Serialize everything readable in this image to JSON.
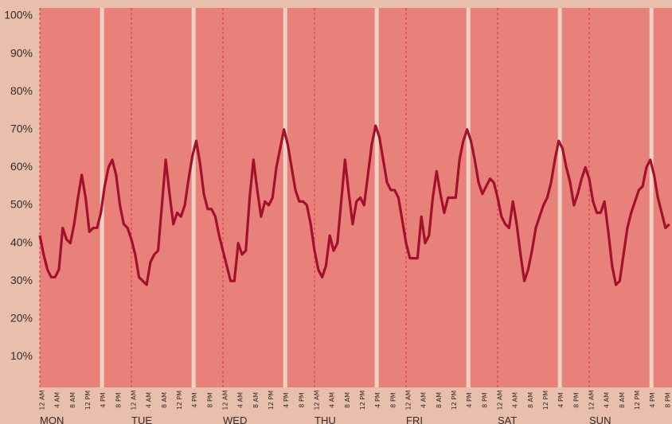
{
  "chart_data": {
    "type": "line",
    "color": "#a3102c",
    "background": "#e8817a",
    "x": [
      0,
      1,
      2,
      3,
      4,
      5,
      6,
      7,
      8,
      9,
      10,
      11,
      12,
      13,
      14,
      15,
      16,
      17,
      18,
      19,
      20,
      21,
      22,
      23,
      24,
      25,
      26,
      27,
      28,
      29,
      30,
      31,
      32,
      33,
      34,
      35,
      36,
      37,
      38,
      39,
      40,
      41,
      42,
      43,
      44,
      45,
      46,
      47,
      48,
      49,
      50,
      51,
      52,
      53,
      54,
      55,
      56,
      57,
      58,
      59,
      60,
      61,
      62,
      63,
      64,
      65,
      66,
      67,
      68,
      69,
      70,
      71,
      72,
      73,
      74,
      75,
      76,
      77,
      78,
      79,
      80,
      81,
      82,
      83,
      84,
      85,
      86,
      87,
      88,
      89,
      90,
      91,
      92,
      93,
      94,
      95,
      96,
      97,
      98,
      99,
      100,
      101,
      102,
      103,
      104,
      105,
      106,
      107,
      108,
      109,
      110,
      111,
      112,
      113,
      114,
      115,
      116,
      117,
      118,
      119,
      120,
      121,
      122,
      123,
      124,
      125,
      126,
      127,
      128,
      129,
      130,
      131,
      132,
      133,
      134,
      135,
      136,
      137,
      138,
      139,
      140,
      141,
      142,
      143,
      144,
      145,
      146,
      147,
      148,
      149,
      150,
      151,
      152,
      153,
      154,
      155,
      156,
      157,
      158,
      159,
      160,
      161,
      162,
      163,
      164,
      165
    ],
    "values": [
      42,
      37,
      33,
      31,
      31,
      33,
      44,
      41,
      40,
      45,
      52,
      58,
      52,
      43,
      44,
      44,
      48,
      55,
      60,
      62,
      58,
      50,
      45,
      44,
      41,
      37,
      31,
      30,
      29,
      35,
      37,
      38,
      50,
      62,
      53,
      45,
      48,
      47,
      50,
      57,
      63,
      67,
      61,
      53,
      49,
      49,
      47,
      42,
      38,
      34,
      30,
      30,
      40,
      37,
      38,
      52,
      62,
      54,
      47,
      51,
      50,
      52,
      60,
      65,
      70,
      66,
      60,
      54,
      51,
      51,
      50,
      45,
      38,
      33,
      31,
      34,
      42,
      38,
      40,
      51,
      62,
      53,
      45,
      51,
      52,
      50,
      58,
      66,
      71,
      68,
      62,
      56,
      54,
      54,
      52,
      46,
      40,
      36,
      36,
      36,
      47,
      40,
      42,
      52,
      59,
      53,
      48,
      52,
      52,
      52,
      62,
      67,
      70,
      67,
      62,
      56,
      53,
      55,
      57,
      56,
      52,
      47,
      45,
      44,
      51,
      45,
      37,
      30,
      33,
      38,
      44,
      47,
      50,
      52,
      56,
      62,
      67,
      65,
      60,
      56,
      50,
      53,
      57,
      60,
      57,
      51,
      48,
      48,
      51,
      43,
      34,
      29,
      30,
      37,
      44,
      48,
      51,
      54,
      55,
      60,
      62,
      58,
      52,
      48,
      44,
      45
    ],
    "xlim": [
      0,
      165.7
    ],
    "ylim": [
      0,
      100
    ],
    "yticks": [
      {
        "value": 10,
        "label": "10%"
      },
      {
        "value": 20,
        "label": "20%"
      },
      {
        "value": 30,
        "label": "30%"
      },
      {
        "value": 40,
        "label": "40%"
      },
      {
        "value": 50,
        "label": "50%"
      },
      {
        "value": 60,
        "label": "60%"
      },
      {
        "value": 70,
        "label": "70%"
      },
      {
        "value": 80,
        "label": "80%"
      },
      {
        "value": 90,
        "label": "90%"
      },
      {
        "value": 100,
        "label": "100%"
      }
    ],
    "xticks": [
      {
        "value": 0,
        "label": "12 AM"
      },
      {
        "value": 4,
        "label": "4 AM"
      },
      {
        "value": 8,
        "label": "8 AM"
      },
      {
        "value": 12,
        "label": "12 PM"
      },
      {
        "value": 16,
        "label": "4 PM"
      },
      {
        "value": 20,
        "label": "8 PM"
      },
      {
        "value": 24,
        "label": "12 AM"
      },
      {
        "value": 28,
        "label": "4 AM"
      },
      {
        "value": 32,
        "label": "8 AM"
      },
      {
        "value": 36,
        "label": "12 PM"
      },
      {
        "value": 40,
        "label": "4 PM"
      },
      {
        "value": 44,
        "label": "8 PM"
      },
      {
        "value": 48,
        "label": "12 AM"
      },
      {
        "value": 52,
        "label": "4 AM"
      },
      {
        "value": 56,
        "label": "8 AM"
      },
      {
        "value": 60,
        "label": "12 PM"
      },
      {
        "value": 64,
        "label": "4 PM"
      },
      {
        "value": 68,
        "label": "8 PM"
      },
      {
        "value": 72,
        "label": "12 AM"
      },
      {
        "value": 76,
        "label": "4 AM"
      },
      {
        "value": 80,
        "label": "8 AM"
      },
      {
        "value": 84,
        "label": "12 PM"
      },
      {
        "value": 88,
        "label": "4 PM"
      },
      {
        "value": 92,
        "label": "8 PM"
      },
      {
        "value": 96,
        "label": "12 AM"
      },
      {
        "value": 100,
        "label": "4 AM"
      },
      {
        "value": 104,
        "label": "8 AM"
      },
      {
        "value": 108,
        "label": "12 PM"
      },
      {
        "value": 112,
        "label": "4 PM"
      },
      {
        "value": 116,
        "label": "8 PM"
      },
      {
        "value": 120,
        "label": "12 AM"
      },
      {
        "value": 124,
        "label": "4 AM"
      },
      {
        "value": 128,
        "label": "8 AM"
      },
      {
        "value": 132,
        "label": "12 PM"
      },
      {
        "value": 136,
        "label": "4 PM"
      },
      {
        "value": 140,
        "label": "8 PM"
      },
      {
        "value": 144,
        "label": "12 AM"
      },
      {
        "value": 148,
        "label": "4 AM"
      },
      {
        "value": 152,
        "label": "8 AM"
      },
      {
        "value": 156,
        "label": "12 PM"
      },
      {
        "value": 160,
        "label": "4 PM"
      },
      {
        "value": 164,
        "label": "8 PM"
      }
    ],
    "day_labels": [
      {
        "value": 0,
        "label": "MON"
      },
      {
        "value": 24,
        "label": "TUE"
      },
      {
        "value": 48,
        "label": "WED"
      },
      {
        "value": 72,
        "label": "THU"
      },
      {
        "value": 96,
        "label": "FRI"
      },
      {
        "value": 120,
        "label": "SAT"
      },
      {
        "value": 144,
        "label": "SUN"
      }
    ]
  }
}
